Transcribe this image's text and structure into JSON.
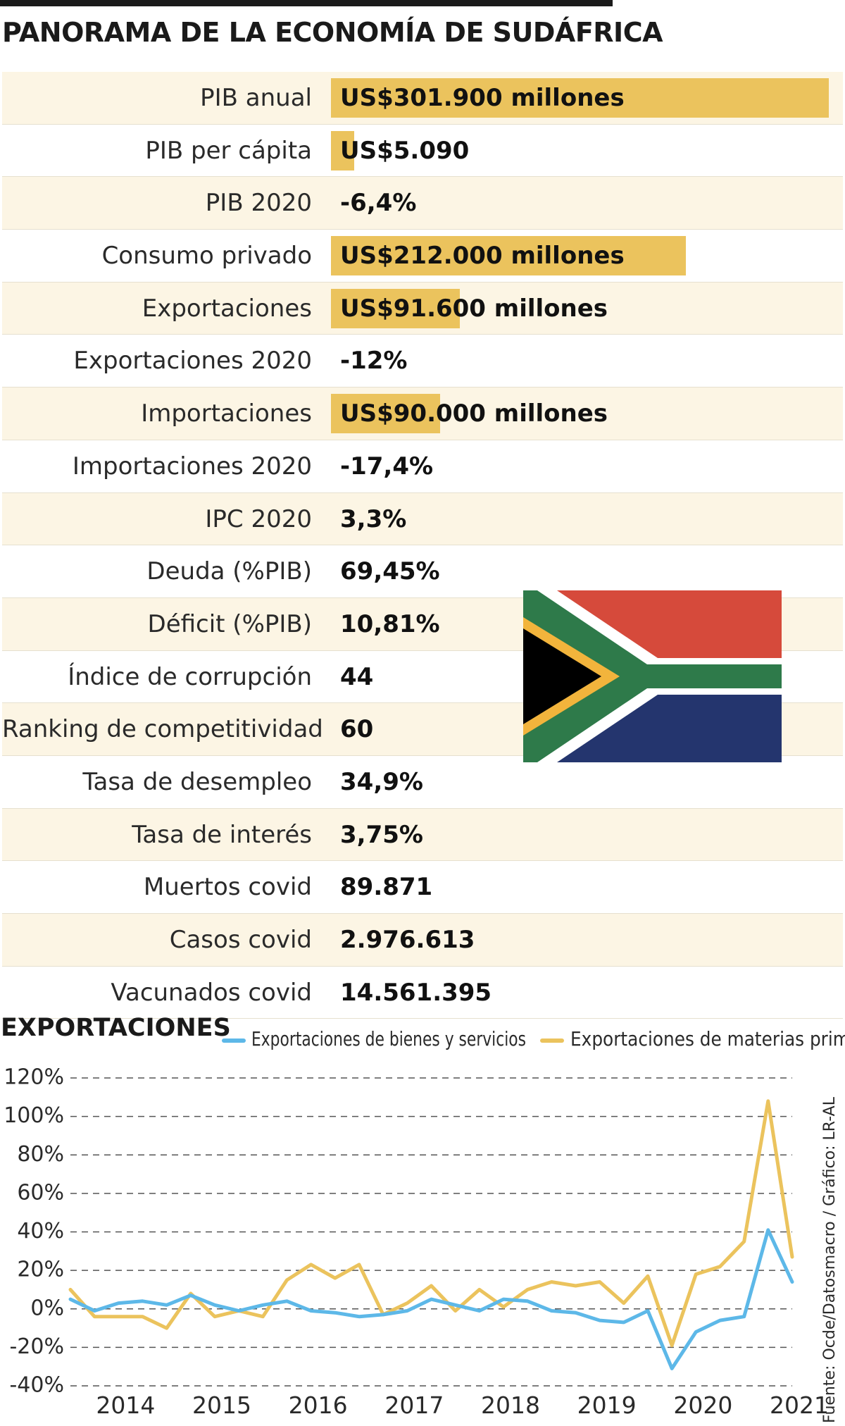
{
  "title": "PANORAMA DE LA ECONOMÍA DE SUDÁFRICA",
  "stats": [
    {
      "label": "PIB anual",
      "value": "US$301.900 millones",
      "bar_fraction": 1.0
    },
    {
      "label": "PIB per cápita",
      "value": "US$5.090",
      "bar_fraction": 0.046
    },
    {
      "label": "PIB 2020",
      "value": "-6,4%"
    },
    {
      "label": "Consumo privado",
      "value": "US$212.000 millones",
      "bar_fraction": 0.713
    },
    {
      "label": "Exportaciones",
      "value": "US$91.600 millones",
      "bar_fraction": 0.259
    },
    {
      "label": "Exportaciones 2020",
      "value": "-12%"
    },
    {
      "label": "Importaciones",
      "value": "US$90.000 millones",
      "bar_fraction": 0.219
    },
    {
      "label": "Importaciones 2020",
      "value": "-17,4%"
    },
    {
      "label": "IPC 2020",
      "value": "3,3%"
    },
    {
      "label": "Deuda (%PIB)",
      "value": "69,45%"
    },
    {
      "label": "Déficit (%PIB)",
      "value": "10,81%"
    },
    {
      "label": "Índice de corrupción",
      "value": "44"
    },
    {
      "label": "Ranking de competitividad",
      "value": "60"
    },
    {
      "label": "Tasa de desempleo",
      "value": "34,9%"
    },
    {
      "label": "Tasa de interés",
      "value": "3,75%"
    },
    {
      "label": "Muertos covid",
      "value": "89.871"
    },
    {
      "label": "Casos covid",
      "value": "2.976.613"
    },
    {
      "label": "Vacunados covid",
      "value": "14.561.395"
    }
  ],
  "flag": {
    "name": "south-africa-flag",
    "colors": {
      "red": "#d64a3b",
      "green": "#2e7a4a",
      "blue": "#24356e",
      "gold": "#f2b43c",
      "black": "#000000",
      "white": "#ffffff"
    }
  },
  "chart_data": {
    "type": "line",
    "title": "EXPORTACIONES",
    "xlabel": "",
    "ylabel": "",
    "x_ticks": [
      "2014",
      "2015",
      "2016",
      "2017",
      "2018",
      "2019",
      "2020",
      "2021"
    ],
    "y_ticks": [
      "120%",
      "100%",
      "80%",
      "60%",
      "40%",
      "20%",
      "0%",
      "-20%",
      "-40%"
    ],
    "ylim": [
      -40,
      120
    ],
    "grid": true,
    "x": [
      2013.5,
      2013.75,
      2014.0,
      2014.25,
      2014.5,
      2014.75,
      2015.0,
      2015.25,
      2015.5,
      2015.75,
      2016.0,
      2016.25,
      2016.5,
      2016.75,
      2017.0,
      2017.25,
      2017.5,
      2017.75,
      2018.0,
      2018.25,
      2018.5,
      2018.75,
      2019.0,
      2019.25,
      2019.5,
      2019.75,
      2020.0,
      2020.25,
      2020.5,
      2020.75,
      2021.0
    ],
    "series": [
      {
        "name": "Exportaciones de bienes y servicios",
        "color": "#5db8e8",
        "values": [
          5,
          -1,
          3,
          4,
          2,
          7,
          2,
          -1,
          2,
          4,
          -1,
          -2,
          -4,
          -3,
          -1,
          5,
          2,
          -1,
          5,
          4,
          -1,
          -2,
          -6,
          -7,
          -1,
          -31,
          -12,
          -6,
          -4,
          41,
          14
        ]
      },
      {
        "name": "Exportaciones de materias primas",
        "color": "#ebc35d",
        "values": [
          10,
          -4,
          -4,
          -4,
          -10,
          8,
          -4,
          -1,
          -4,
          15,
          23,
          16,
          23,
          -3,
          3,
          12,
          -1,
          10,
          1,
          10,
          14,
          12,
          14,
          3,
          17,
          -19,
          18,
          22,
          35,
          108,
          27
        ]
      }
    ]
  },
  "source": "Fuente: Ocde/Datosmacro / Gráfico: LR-AL"
}
